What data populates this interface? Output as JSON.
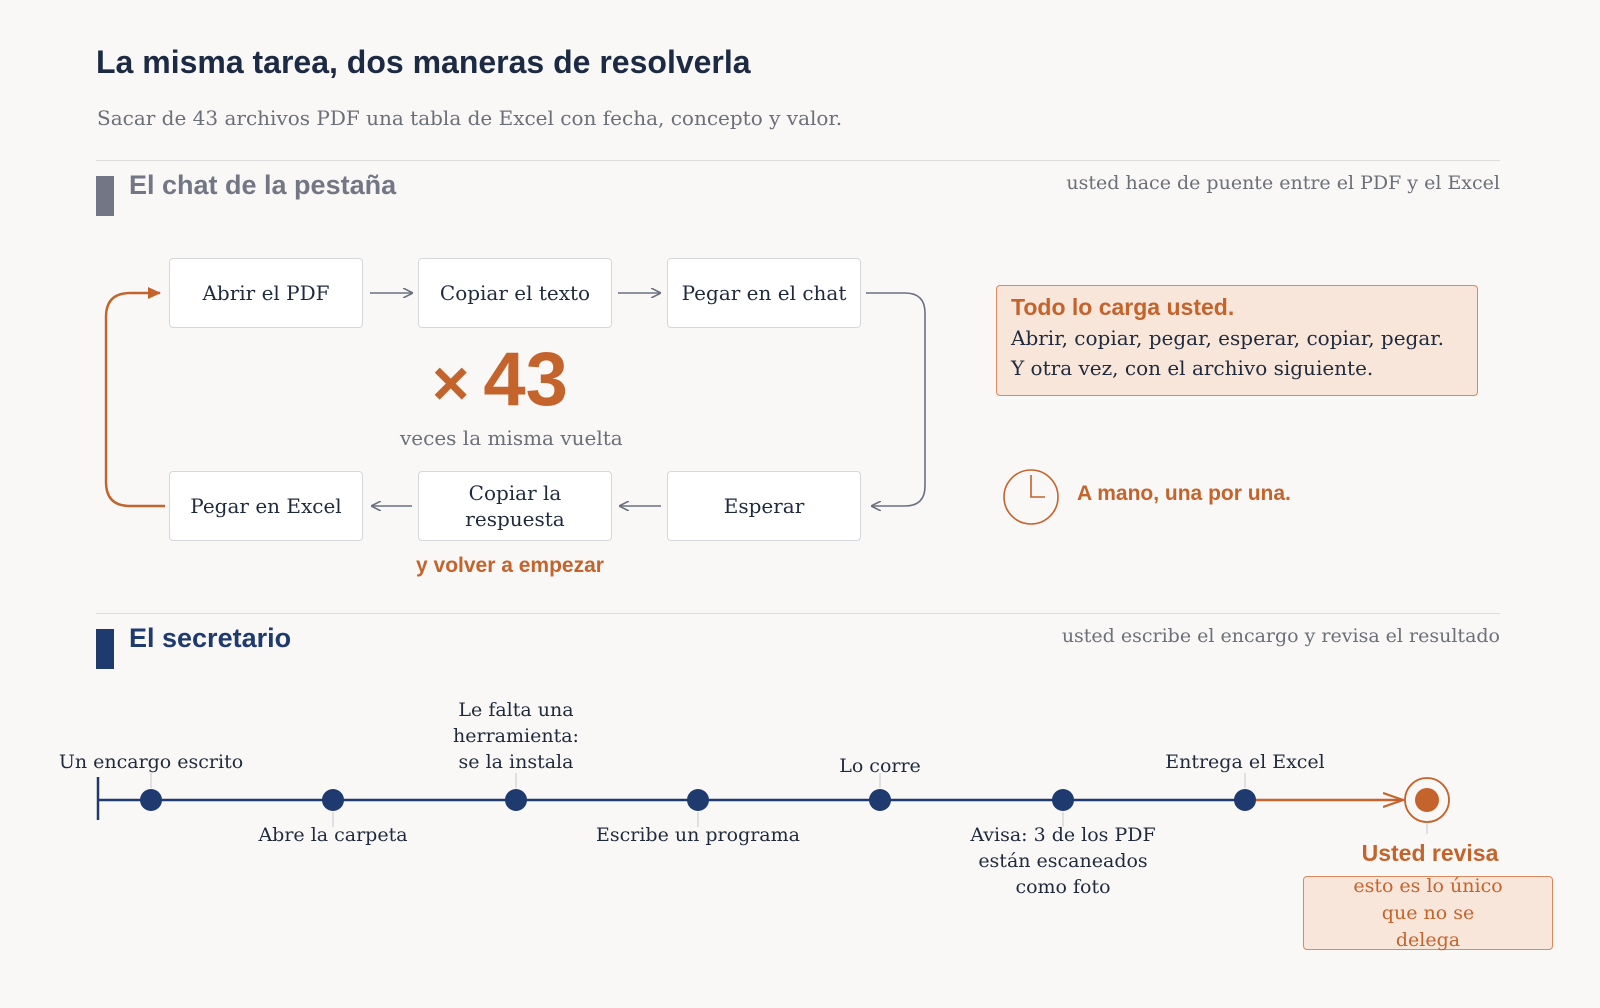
{
  "title": "La misma tarea, dos maneras de resolverla",
  "subtitle": "Sacar de 43 archivos PDF una tabla de Excel con fecha, concepto y valor.",
  "section1": {
    "title": "El chat de la pestaña",
    "note": "usted hace de puente entre el PDF y el Excel",
    "steps": [
      "Abrir el PDF",
      "Copiar el texto",
      "Pegar en el chat",
      "Esperar",
      "Copiar la respuesta",
      "Pegar en Excel"
    ],
    "times_symbol": "×",
    "times_value": "43",
    "times_caption": "veces la misma vuelta",
    "loop_label": "y volver a empezar",
    "callout_title": "Todo lo carga usted.",
    "callout_text": "Abrir, copiar, pegar, esperar, copiar, pegar. Y otra vez, con el archivo siguiente.",
    "clock_label": "A mano, una por una."
  },
  "section2": {
    "title": "El secretario",
    "note": "usted escribe el encargo y revisa el resultado",
    "timeline": [
      "Un encargo escrito",
      "Abre la carpeta",
      "Le falta una herramienta: se la instala",
      "Escribe un programa",
      "Lo corre",
      "Avisa: 3 de los PDF están escaneados como foto",
      "Entrega el Excel"
    ],
    "final_label": "Usted revisa",
    "final_note": "esto es lo único que no se delega"
  },
  "colors": {
    "navy": "#1f3a6e",
    "gray_bar": "#737685",
    "orange": "#c4632c",
    "orange_bg": "#f8e6da"
  }
}
